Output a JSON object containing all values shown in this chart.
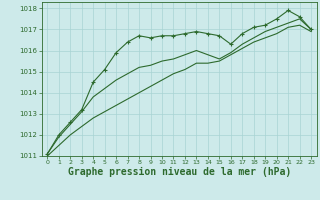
{
  "background_color": "#cdeaea",
  "grid_color": "#a8d4d4",
  "line_color": "#2d6a2d",
  "marker_color": "#2d6a2d",
  "xlabel": "Graphe pression niveau de la mer (hPa)",
  "xlabel_fontsize": 7,
  "xlim": [
    -0.5,
    23.5
  ],
  "ylim": [
    1011,
    1018.3
  ],
  "yticks": [
    1011,
    1012,
    1013,
    1014,
    1015,
    1016,
    1017,
    1018
  ],
  "xticks": [
    0,
    1,
    2,
    3,
    4,
    5,
    6,
    7,
    8,
    9,
    10,
    11,
    12,
    13,
    14,
    15,
    16,
    17,
    18,
    19,
    20,
    21,
    22,
    23
  ],
  "series1_x": [
    0,
    1,
    2,
    3,
    4,
    5,
    6,
    7,
    8,
    9,
    10,
    11,
    12,
    13,
    14,
    15,
    16,
    17,
    18,
    19,
    20,
    21,
    22,
    23
  ],
  "series1_y": [
    1011.1,
    1012.0,
    1012.6,
    1013.2,
    1014.5,
    1015.1,
    1015.9,
    1016.4,
    1016.7,
    1016.6,
    1016.7,
    1016.7,
    1016.8,
    1016.9,
    1016.8,
    1016.7,
    1016.3,
    1016.8,
    1017.1,
    1017.2,
    1017.5,
    1017.9,
    1017.6,
    1017.0
  ],
  "series2_x": [
    0,
    1,
    2,
    3,
    4,
    5,
    6,
    7,
    8,
    9,
    10,
    11,
    12,
    13,
    14,
    15,
    16,
    17,
    18,
    19,
    20,
    21,
    22,
    23
  ],
  "series2_y": [
    1011.1,
    1011.9,
    1012.5,
    1013.1,
    1013.8,
    1014.2,
    1014.6,
    1014.9,
    1015.2,
    1015.3,
    1015.5,
    1015.6,
    1015.8,
    1016.0,
    1015.8,
    1015.6,
    1015.9,
    1016.3,
    1016.6,
    1016.9,
    1017.1,
    1017.3,
    1017.5,
    1017.0
  ],
  "series3_x": [
    0,
    1,
    2,
    3,
    4,
    5,
    6,
    7,
    8,
    9,
    10,
    11,
    12,
    13,
    14,
    15,
    16,
    17,
    18,
    19,
    20,
    21,
    22,
    23
  ],
  "series3_y": [
    1011.0,
    1011.5,
    1012.0,
    1012.4,
    1012.8,
    1013.1,
    1013.4,
    1013.7,
    1014.0,
    1014.3,
    1014.6,
    1014.9,
    1015.1,
    1015.4,
    1015.4,
    1015.5,
    1015.8,
    1016.1,
    1016.4,
    1016.6,
    1016.8,
    1017.1,
    1017.2,
    1016.9
  ]
}
